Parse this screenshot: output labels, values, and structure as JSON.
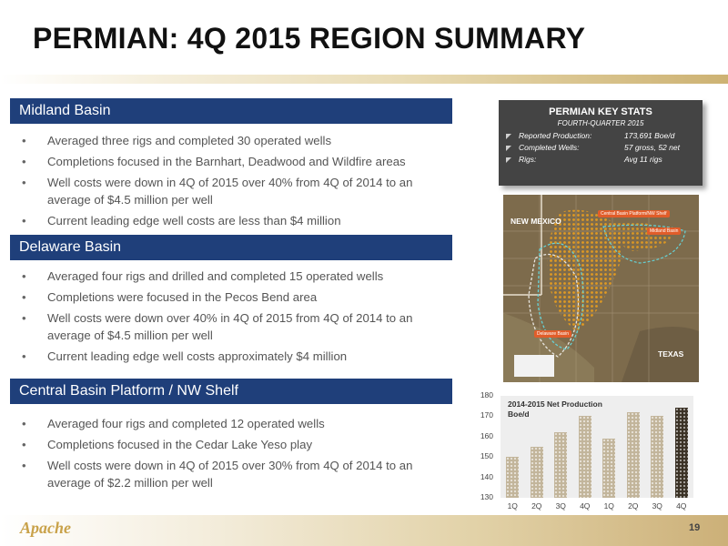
{
  "title": "PERMIAN: 4Q 2015 REGION SUMMARY",
  "sections": [
    {
      "header": "Midland Basin",
      "bullets": [
        "Averaged three rigs and completed 30 operated wells",
        "Completions focused in the Barnhart, Deadwood and Wildfire areas",
        "Well costs were down in 4Q of 2015 over 40% from 4Q of 2014 to an average of $4.5 million per well",
        "Current leading edge well costs are less than $4 million"
      ]
    },
    {
      "header": "Delaware Basin",
      "bullets": [
        "Averaged four rigs and drilled and completed 15 operated wells",
        "Completions were focused in the Pecos Bend area",
        "Well costs were down over 40% in 4Q of 2015 from 4Q of 2014 to an average of $4.5 million per well",
        "Current leading edge well costs approximately $4 million"
      ]
    },
    {
      "header": "Central Basin Platform / NW Shelf",
      "bullets": [
        "Averaged four rigs and completed 12 operated wells",
        "Completions focused in the Cedar Lake Yeso play",
        "Well costs were down in 4Q of 2015 over 30% from 4Q of 2014 to an average of $2.2 million per well"
      ]
    }
  ],
  "key_stats": {
    "title": "PERMIAN KEY STATS",
    "subtitle": "FOURTH-QUARTER 2015",
    "rows": [
      {
        "label": "Reported Production:",
        "value": "173,691 Boe/d"
      },
      {
        "label": "Completed Wells:",
        "value": "57 gross, 52 net"
      },
      {
        "label": "Rigs:",
        "value": "Avg 11 rigs"
      }
    ]
  },
  "map": {
    "state_left": "NEW MEXICO",
    "state_right": "TEXAS",
    "tag_cbp": "Central Basin Platform/NW Shelf",
    "tag_midland": "Midland Basin",
    "tag_delaware": "Delaware Basin"
  },
  "chart_data": {
    "type": "bar",
    "title": "2014-2015 Net Production Boe/d",
    "categories": [
      "1Q",
      "2Q",
      "3Q",
      "4Q",
      "1Q",
      "2Q",
      "3Q",
      "4Q"
    ],
    "values": [
      150,
      155,
      162,
      170,
      159,
      172,
      170,
      174
    ],
    "ylim": [
      130,
      180
    ],
    "yticks": [
      130,
      140,
      150,
      160,
      170,
      180
    ],
    "colors": {
      "default": "#c2b59b",
      "highlight": "#3b3226"
    }
  },
  "footer": {
    "logo": "Apache",
    "page_number": "19"
  }
}
